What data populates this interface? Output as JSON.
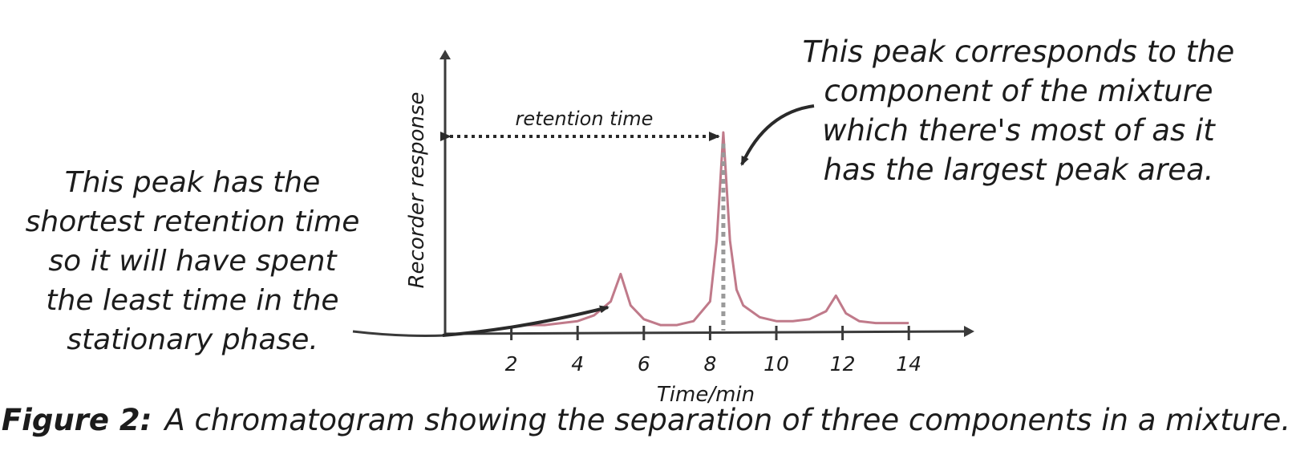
{
  "chart_data": {
    "type": "line",
    "xlabel": "Time/min",
    "ylabel": "Recorder response",
    "x_ticks": [
      2,
      4,
      6,
      8,
      10,
      12,
      14
    ],
    "xlim": [
      0,
      15.8
    ],
    "ylim": [
      0,
      1
    ],
    "peaks": [
      {
        "retention_time": 5.3,
        "relative_height": 0.28
      },
      {
        "retention_time": 8.4,
        "relative_height": 1.0
      },
      {
        "retention_time": 11.8,
        "relative_height": 0.17
      }
    ],
    "series": [
      {
        "values_x": [
          2.3,
          3,
          4,
          4.5,
          5,
          5.3,
          5.6,
          6,
          6.5,
          7,
          7.5,
          8,
          8.2,
          8.4,
          8.6,
          8.8,
          9,
          9.5,
          10,
          10.5,
          11,
          11.5,
          11.8,
          12.1,
          12.5,
          13,
          14
        ],
        "values_y": [
          0.02,
          0.02,
          0.04,
          0.07,
          0.14,
          0.28,
          0.12,
          0.05,
          0.02,
          0.02,
          0.04,
          0.14,
          0.45,
          1.0,
          0.45,
          0.2,
          0.12,
          0.06,
          0.04,
          0.04,
          0.05,
          0.09,
          0.17,
          0.08,
          0.04,
          0.03,
          0.03
        ]
      }
    ],
    "annotations": {
      "retention_label": "retention time",
      "retention_span": [
        0,
        8.4
      ]
    },
    "colors": {
      "series": "#c07a8a",
      "axis": "#3a3a3a",
      "text": "#1c1c1c"
    }
  },
  "notes": {
    "left": "This peak has the shortest retention time so it will have spent the least time in the stationary phase.",
    "right": "This peak corresponds to the component of the mixture which there's most of as it has the largest peak area."
  },
  "caption": {
    "label": "Figure 2:",
    "text": "A chromatogram showing the separation of three components in a mixture."
  }
}
